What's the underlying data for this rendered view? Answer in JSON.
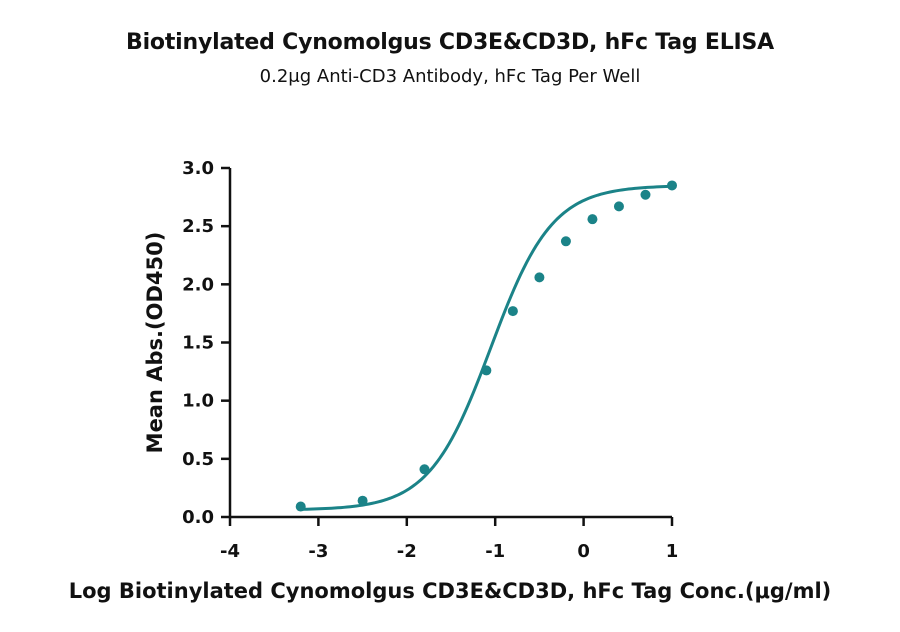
{
  "chart_data": {
    "type": "scatter",
    "title": "Biotinylated Cynomolgus CD3E&CD3D, hFc Tag ELISA",
    "subtitle": "0.2μg Anti-CD3 Antibody, hFc Tag Per Well",
    "xlabel": "Log Biotinylated Cynomolgus CD3E&CD3D, hFc Tag Conc.(μg/ml)",
    "ylabel": "Mean Abs.(OD450)",
    "xlim": [
      -4,
      1
    ],
    "ylim": [
      0,
      3.0
    ],
    "x_ticks": [
      "-4",
      "-3",
      "-2",
      "-1",
      "0",
      "1"
    ],
    "y_ticks": [
      "0.0",
      "0.5",
      "1.0",
      "1.5",
      "2.0",
      "2.5",
      "3.0"
    ],
    "series": [
      {
        "x": [
          -3.2,
          -2.5,
          -1.8,
          -1.1,
          -0.8,
          -0.5,
          -0.2,
          0.1,
          0.4,
          0.7,
          1.0
        ],
        "y": [
          0.09,
          0.14,
          0.41,
          1.26,
          1.77,
          2.06,
          2.37,
          2.56,
          2.67,
          2.77,
          2.85
        ],
        "fit_curve": true
      }
    ],
    "color": "#1b8388",
    "grid": false,
    "legend": "none"
  }
}
